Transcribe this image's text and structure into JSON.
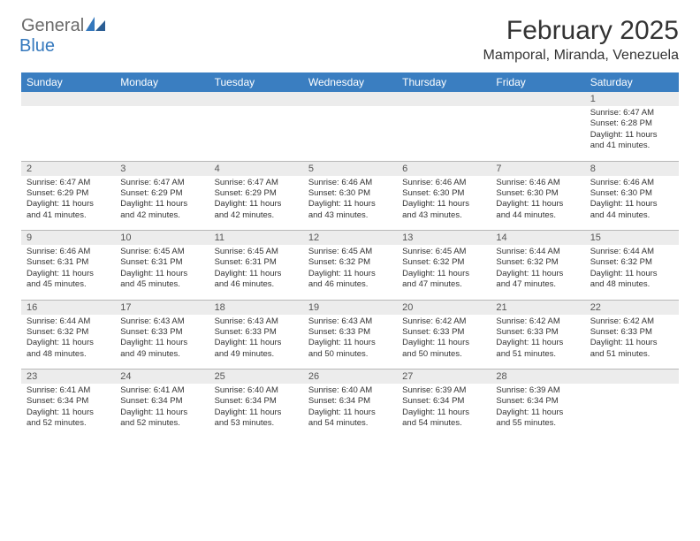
{
  "brand": {
    "general": "General",
    "blue": "Blue"
  },
  "title": "February 2025",
  "location": "Mamporal, Miranda, Venezuela",
  "colors": {
    "header_bg": "#3a7ec1",
    "daynum_bg": "#ececec",
    "border": "#b8b8b8",
    "text": "#333333"
  },
  "typography": {
    "title_fontsize": 30,
    "location_fontsize": 16,
    "dayheader_fontsize": 12,
    "daynum_fontsize": 11,
    "cell_fontsize": 9.5
  },
  "dayHeaders": [
    "Sunday",
    "Monday",
    "Tuesday",
    "Wednesday",
    "Thursday",
    "Friday",
    "Saturday"
  ],
  "weeks": [
    [
      null,
      null,
      null,
      null,
      null,
      null,
      {
        "n": "1",
        "sunrise": "6:47 AM",
        "sunset": "6:28 PM",
        "daylight": "11 hours and 41 minutes."
      }
    ],
    [
      {
        "n": "2",
        "sunrise": "6:47 AM",
        "sunset": "6:29 PM",
        "daylight": "11 hours and 41 minutes."
      },
      {
        "n": "3",
        "sunrise": "6:47 AM",
        "sunset": "6:29 PM",
        "daylight": "11 hours and 42 minutes."
      },
      {
        "n": "4",
        "sunrise": "6:47 AM",
        "sunset": "6:29 PM",
        "daylight": "11 hours and 42 minutes."
      },
      {
        "n": "5",
        "sunrise": "6:46 AM",
        "sunset": "6:30 PM",
        "daylight": "11 hours and 43 minutes."
      },
      {
        "n": "6",
        "sunrise": "6:46 AM",
        "sunset": "6:30 PM",
        "daylight": "11 hours and 43 minutes."
      },
      {
        "n": "7",
        "sunrise": "6:46 AM",
        "sunset": "6:30 PM",
        "daylight": "11 hours and 44 minutes."
      },
      {
        "n": "8",
        "sunrise": "6:46 AM",
        "sunset": "6:30 PM",
        "daylight": "11 hours and 44 minutes."
      }
    ],
    [
      {
        "n": "9",
        "sunrise": "6:46 AM",
        "sunset": "6:31 PM",
        "daylight": "11 hours and 45 minutes."
      },
      {
        "n": "10",
        "sunrise": "6:45 AM",
        "sunset": "6:31 PM",
        "daylight": "11 hours and 45 minutes."
      },
      {
        "n": "11",
        "sunrise": "6:45 AM",
        "sunset": "6:31 PM",
        "daylight": "11 hours and 46 minutes."
      },
      {
        "n": "12",
        "sunrise": "6:45 AM",
        "sunset": "6:32 PM",
        "daylight": "11 hours and 46 minutes."
      },
      {
        "n": "13",
        "sunrise": "6:45 AM",
        "sunset": "6:32 PM",
        "daylight": "11 hours and 47 minutes."
      },
      {
        "n": "14",
        "sunrise": "6:44 AM",
        "sunset": "6:32 PM",
        "daylight": "11 hours and 47 minutes."
      },
      {
        "n": "15",
        "sunrise": "6:44 AM",
        "sunset": "6:32 PM",
        "daylight": "11 hours and 48 minutes."
      }
    ],
    [
      {
        "n": "16",
        "sunrise": "6:44 AM",
        "sunset": "6:32 PM",
        "daylight": "11 hours and 48 minutes."
      },
      {
        "n": "17",
        "sunrise": "6:43 AM",
        "sunset": "6:33 PM",
        "daylight": "11 hours and 49 minutes."
      },
      {
        "n": "18",
        "sunrise": "6:43 AM",
        "sunset": "6:33 PM",
        "daylight": "11 hours and 49 minutes."
      },
      {
        "n": "19",
        "sunrise": "6:43 AM",
        "sunset": "6:33 PM",
        "daylight": "11 hours and 50 minutes."
      },
      {
        "n": "20",
        "sunrise": "6:42 AM",
        "sunset": "6:33 PM",
        "daylight": "11 hours and 50 minutes."
      },
      {
        "n": "21",
        "sunrise": "6:42 AM",
        "sunset": "6:33 PM",
        "daylight": "11 hours and 51 minutes."
      },
      {
        "n": "22",
        "sunrise": "6:42 AM",
        "sunset": "6:33 PM",
        "daylight": "11 hours and 51 minutes."
      }
    ],
    [
      {
        "n": "23",
        "sunrise": "6:41 AM",
        "sunset": "6:34 PM",
        "daylight": "11 hours and 52 minutes."
      },
      {
        "n": "24",
        "sunrise": "6:41 AM",
        "sunset": "6:34 PM",
        "daylight": "11 hours and 52 minutes."
      },
      {
        "n": "25",
        "sunrise": "6:40 AM",
        "sunset": "6:34 PM",
        "daylight": "11 hours and 53 minutes."
      },
      {
        "n": "26",
        "sunrise": "6:40 AM",
        "sunset": "6:34 PM",
        "daylight": "11 hours and 54 minutes."
      },
      {
        "n": "27",
        "sunrise": "6:39 AM",
        "sunset": "6:34 PM",
        "daylight": "11 hours and 54 minutes."
      },
      {
        "n": "28",
        "sunrise": "6:39 AM",
        "sunset": "6:34 PM",
        "daylight": "11 hours and 55 minutes."
      },
      null
    ]
  ],
  "labels": {
    "sunrise": "Sunrise: ",
    "sunset": "Sunset: ",
    "daylight": "Daylight: "
  }
}
